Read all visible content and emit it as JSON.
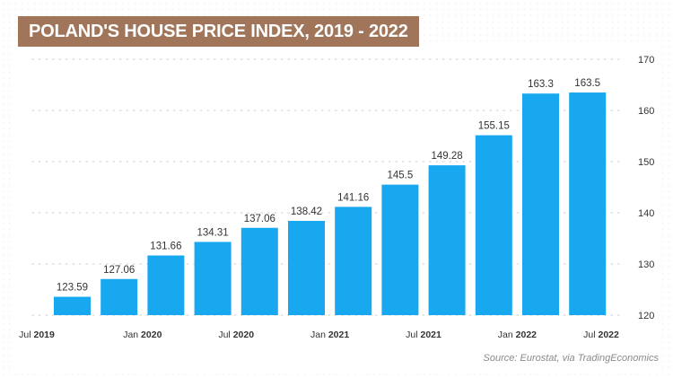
{
  "title": "POLAND'S HOUSE PRICE INDEX, 2019 - 2022",
  "source": "Source: Eurostat, via TradingEconomics",
  "colors": {
    "bar": "#18a8f0",
    "title_bg": "#a0755a",
    "grid": "#d8d8d8",
    "text": "#333333"
  },
  "chart_data": {
    "type": "bar",
    "title": "POLAND'S HOUSE PRICE INDEX, 2019 - 2022",
    "xlabel": "",
    "ylabel": "",
    "ylim": [
      120,
      170
    ],
    "yticks": [
      120,
      130,
      140,
      150,
      160,
      170
    ],
    "grid": true,
    "y_axis_side": "right",
    "categories": [
      "Q3 2019",
      "Q4 2019",
      "Q1 2020",
      "Q2 2020",
      "Q3 2020",
      "Q4 2020",
      "Q1 2021",
      "Q2 2021",
      "Q3 2021",
      "Q4 2021",
      "Q1 2022",
      "Q2 2022"
    ],
    "values": [
      123.59,
      127.06,
      131.66,
      134.31,
      137.06,
      138.42,
      141.16,
      145.5,
      149.28,
      155.15,
      163.3,
      163.5
    ],
    "data_labels": [
      "123.59",
      "127.06",
      "131.66",
      "134.31",
      "137.06",
      "138.42",
      "141.16",
      "145.5",
      "149.28",
      "155.15",
      "163.3",
      "163.5"
    ],
    "x_tick_labels": [
      {
        "prefix": "Jul ",
        "year": "2019",
        "at": 0
      },
      {
        "prefix": "Jan ",
        "year": "2020",
        "at": 2
      },
      {
        "prefix": "Jul ",
        "year": "2020",
        "at": 4
      },
      {
        "prefix": "Jan ",
        "year": "2021",
        "at": 6
      },
      {
        "prefix": "Jul ",
        "year": "2021",
        "at": 8
      },
      {
        "prefix": "Jan ",
        "year": "2022",
        "at": 10
      },
      {
        "prefix": "Jul ",
        "year": "2022",
        "at": 12
      }
    ]
  }
}
